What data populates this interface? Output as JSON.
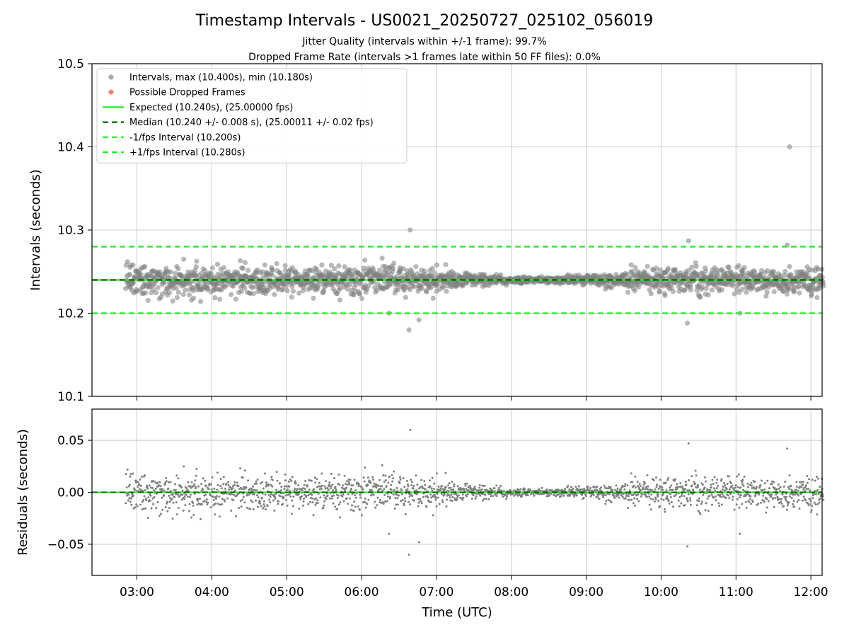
{
  "chart_data": [
    {
      "type": "scatter",
      "title": "Timestamp Intervals - US0021_20250727_025102_056019",
      "subtitle_lines": [
        "Jitter Quality (intervals within +/-1 frame): 99.7%",
        "Dropped Frame Rate (intervals >1 frames late within 50 FF files): 0.0%"
      ],
      "ylabel": "Intervals (seconds)",
      "ylim": [
        10.1,
        10.5
      ],
      "yticks": [
        "10.1",
        "10.2",
        "10.3",
        "10.4",
        "10.5"
      ],
      "xlim_hours": [
        2.4,
        12.15
      ],
      "grid": true,
      "legend_position": "upper-left",
      "legend": [
        {
          "label": "Intervals, max (10.400s), min (10.180s)",
          "marker": "dot",
          "color": "#999999"
        },
        {
          "label": "Possible Dropped Frames",
          "marker": "dot",
          "color": "#ff6b6b"
        },
        {
          "label": "Expected (10.240s), (25.00000 fps)",
          "marker": "solid-line",
          "color": "#22ee22"
        },
        {
          "label": "Median (10.240 +/- 0.008 s), (25.00011 +/- 0.02 fps)",
          "marker": "dashed-line",
          "color": "#006400"
        },
        {
          "label": "-1/fps Interval (10.200s)",
          "marker": "dashed-line",
          "color": "#22ee22"
        },
        {
          "label": "+1/fps Interval (10.280s)",
          "marker": "dashed-line",
          "color": "#22ee22"
        }
      ],
      "reference_lines": {
        "expected": 10.24,
        "median": 10.24,
        "minus_one_fps": 10.2,
        "plus_one_fps": 10.28
      },
      "series_summary": {
        "x_start": "02:51",
        "x_end": "12:10",
        "max": 10.4,
        "min": 10.18,
        "median": 10.24,
        "std": 0.008
      },
      "notable_points": [
        {
          "time": "11:43",
          "value": 10.4
        },
        {
          "time": "06:39",
          "value": 10.3
        },
        {
          "time": "10:22",
          "value": 10.287
        },
        {
          "time": "11:41",
          "value": 10.282
        },
        {
          "time": "06:38",
          "value": 10.18
        },
        {
          "time": "06:46",
          "value": 10.192
        },
        {
          "time": "10:21",
          "value": 10.188
        },
        {
          "time": "06:22",
          "value": 10.2
        },
        {
          "time": "11:03",
          "value": 10.2
        }
      ]
    },
    {
      "type": "scatter",
      "xlabel": "Time (UTC)",
      "ylabel": "Residuals (seconds)",
      "ylim": [
        -0.08,
        0.08
      ],
      "yticks": [
        "−0.05",
        "0.00",
        "0.05"
      ],
      "xticks": [
        "03:00",
        "04:00",
        "05:00",
        "06:00",
        "07:00",
        "08:00",
        "09:00",
        "10:00",
        "11:00",
        "12:00"
      ],
      "xlim_hours": [
        2.4,
        12.15
      ],
      "grid": true,
      "zero_line_colors": [
        "#22ee22",
        "#006400"
      ],
      "series_summary": {
        "max": 0.06,
        "min": -0.06,
        "std": 0.008
      },
      "notable_points": [
        {
          "time": "06:39",
          "value": 0.06
        },
        {
          "time": "10:22",
          "value": 0.047
        },
        {
          "time": "06:24",
          "value": 0.04
        },
        {
          "time": "06:38",
          "value": -0.06
        },
        {
          "time": "06:46",
          "value": -0.048
        },
        {
          "time": "10:21",
          "value": -0.052
        },
        {
          "time": "11:03",
          "value": -0.04
        }
      ]
    }
  ],
  "colors": {
    "points": "#808080",
    "dropped": "#ff6b6b",
    "expected": "#22ee22",
    "median": "#006400",
    "grid": "#cccccc"
  }
}
